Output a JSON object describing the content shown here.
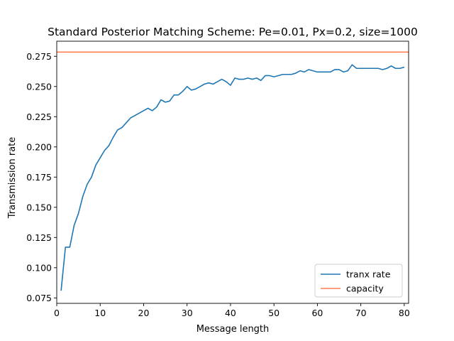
{
  "chart_data": {
    "type": "line",
    "title": "Standard Posterior Matching Scheme: Pe=0.01, Px=0.2, size=1000",
    "xlabel": "Message length",
    "ylabel": "Transmission rate",
    "xlim": [
      0,
      81
    ],
    "ylim": [
      0.0705,
      0.2875
    ],
    "xticks": [
      0,
      10,
      20,
      30,
      40,
      50,
      60,
      70,
      80
    ],
    "yticks": [
      0.075,
      0.1,
      0.125,
      0.15,
      0.175,
      0.2,
      0.225,
      0.25,
      0.275
    ],
    "ytick_labels": [
      "0.075",
      "0.100",
      "0.125",
      "0.150",
      "0.175",
      "0.200",
      "0.225",
      "0.250",
      "0.275"
    ],
    "grid": false,
    "legend_position": "bottom-right",
    "series": [
      {
        "name": "tranx rate",
        "color": "#1f77b4",
        "x": [
          1,
          2,
          3,
          4,
          5,
          6,
          7,
          8,
          9,
          10,
          11,
          12,
          13,
          14,
          15,
          16,
          17,
          18,
          19,
          20,
          21,
          22,
          23,
          24,
          25,
          26,
          27,
          28,
          29,
          30,
          31,
          32,
          33,
          34,
          35,
          36,
          37,
          38,
          39,
          40,
          41,
          42,
          43,
          44,
          45,
          46,
          47,
          48,
          49,
          50,
          51,
          52,
          53,
          54,
          55,
          56,
          57,
          58,
          59,
          60,
          61,
          62,
          63,
          64,
          65,
          66,
          67,
          68,
          69,
          70,
          71,
          72,
          73,
          74,
          75,
          76,
          77,
          78,
          79,
          80
        ],
        "y": [
          0.081,
          0.117,
          0.117,
          0.135,
          0.145,
          0.159,
          0.169,
          0.175,
          0.185,
          0.191,
          0.197,
          0.201,
          0.208,
          0.214,
          0.216,
          0.22,
          0.224,
          0.226,
          0.228,
          0.23,
          0.232,
          0.23,
          0.233,
          0.239,
          0.237,
          0.238,
          0.243,
          0.243,
          0.246,
          0.25,
          0.247,
          0.248,
          0.25,
          0.252,
          0.253,
          0.252,
          0.254,
          0.256,
          0.254,
          0.251,
          0.257,
          0.256,
          0.256,
          0.257,
          0.256,
          0.257,
          0.255,
          0.259,
          0.259,
          0.258,
          0.259,
          0.26,
          0.26,
          0.26,
          0.261,
          0.263,
          0.262,
          0.264,
          0.263,
          0.262,
          0.262,
          0.262,
          0.262,
          0.264,
          0.264,
          0.262,
          0.263,
          0.268,
          0.265,
          0.265,
          0.265,
          0.265,
          0.265,
          0.265,
          0.264,
          0.265,
          0.267,
          0.265,
          0.265,
          0.266
        ]
      },
      {
        "name": "capacity",
        "color": "#ff7f50",
        "x": [
          0,
          81
        ],
        "y": [
          0.2785,
          0.2785
        ]
      }
    ]
  }
}
